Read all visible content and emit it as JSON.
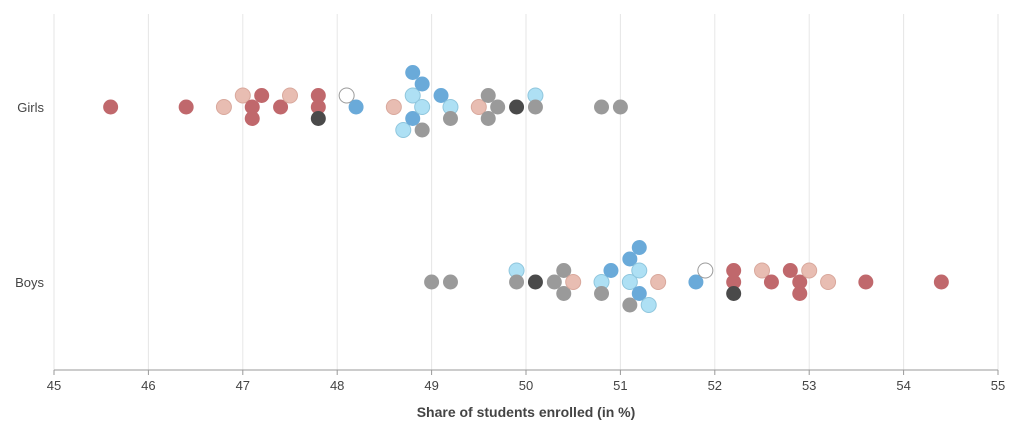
{
  "chart_data": {
    "type": "scatter",
    "title": "",
    "xlabel": "Share of students enrolled (in %)",
    "ylabel": "",
    "xlim": [
      45,
      55
    ],
    "x_ticks": [
      "45",
      "46",
      "47",
      "48",
      "49",
      "50",
      "51",
      "52",
      "53",
      "54",
      "55"
    ],
    "categories": [
      "Girls",
      "Boys"
    ],
    "grid": "vertical",
    "legend": "none",
    "colors": {
      "dark_red": "#c0686c",
      "light_pink": "#e8bdb2",
      "dark_blue": "#6aaad9",
      "light_blue": "#aee0f4",
      "gray": "#9a9a9a",
      "dark_gray": "#4a4a4a",
      "white": "#ffffff"
    },
    "series": [
      {
        "category": "Girls",
        "points": [
          {
            "x": 45.6,
            "color": "dark_red",
            "row": 0
          },
          {
            "x": 46.4,
            "color": "dark_red",
            "row": 0
          },
          {
            "x": 46.8,
            "color": "light_pink",
            "row": 0
          },
          {
            "x": 47.0,
            "color": "light_pink",
            "row": 1
          },
          {
            "x": 47.1,
            "color": "dark_red",
            "row": 0
          },
          {
            "x": 47.1,
            "color": "dark_red",
            "row": -1
          },
          {
            "x": 47.2,
            "color": "dark_red",
            "row": 1
          },
          {
            "x": 47.4,
            "color": "dark_red",
            "row": 0
          },
          {
            "x": 47.5,
            "color": "light_pink",
            "row": 1
          },
          {
            "x": 47.8,
            "color": "dark_red",
            "row": 1
          },
          {
            "x": 47.8,
            "color": "dark_red",
            "row": 0
          },
          {
            "x": 47.8,
            "color": "dark_gray",
            "row": -1
          },
          {
            "x": 48.1,
            "color": "white",
            "row": 1
          },
          {
            "x": 48.2,
            "color": "dark_blue",
            "row": 0
          },
          {
            "x": 48.6,
            "color": "light_pink",
            "row": 0
          },
          {
            "x": 48.7,
            "color": "light_blue",
            "row": -2
          },
          {
            "x": 48.8,
            "color": "dark_blue",
            "row": 3
          },
          {
            "x": 48.8,
            "color": "light_blue",
            "row": 1
          },
          {
            "x": 48.8,
            "color": "dark_blue",
            "row": -1
          },
          {
            "x": 48.9,
            "color": "dark_blue",
            "row": 2
          },
          {
            "x": 48.9,
            "color": "light_blue",
            "row": 0
          },
          {
            "x": 48.9,
            "color": "gray",
            "row": -2
          },
          {
            "x": 49.1,
            "color": "dark_blue",
            "row": 1
          },
          {
            "x": 49.2,
            "color": "light_blue",
            "row": 0
          },
          {
            "x": 49.2,
            "color": "gray",
            "row": -1
          },
          {
            "x": 49.5,
            "color": "light_pink",
            "row": 0
          },
          {
            "x": 49.6,
            "color": "gray",
            "row": 1
          },
          {
            "x": 49.6,
            "color": "gray",
            "row": -1
          },
          {
            "x": 49.7,
            "color": "gray",
            "row": 0
          },
          {
            "x": 49.9,
            "color": "dark_gray",
            "row": 0
          },
          {
            "x": 50.1,
            "color": "light_blue",
            "row": 1
          },
          {
            "x": 50.1,
            "color": "gray",
            "row": 0
          },
          {
            "x": 50.8,
            "color": "gray",
            "row": 0
          },
          {
            "x": 51.0,
            "color": "gray",
            "row": 0
          }
        ]
      },
      {
        "category": "Boys",
        "points": [
          {
            "x": 49.0,
            "color": "gray",
            "row": 0
          },
          {
            "x": 49.2,
            "color": "gray",
            "row": 0
          },
          {
            "x": 49.9,
            "color": "light_blue",
            "row": 1
          },
          {
            "x": 49.9,
            "color": "gray",
            "row": 0
          },
          {
            "x": 50.1,
            "color": "dark_gray",
            "row": 0
          },
          {
            "x": 50.3,
            "color": "gray",
            "row": 0
          },
          {
            "x": 50.4,
            "color": "gray",
            "row": 1
          },
          {
            "x": 50.4,
            "color": "gray",
            "row": -1
          },
          {
            "x": 50.5,
            "color": "light_pink",
            "row": 0
          },
          {
            "x": 50.8,
            "color": "light_blue",
            "row": 0
          },
          {
            "x": 50.8,
            "color": "gray",
            "row": -1
          },
          {
            "x": 50.9,
            "color": "dark_blue",
            "row": 1
          },
          {
            "x": 51.1,
            "color": "dark_blue",
            "row": 2
          },
          {
            "x": 51.1,
            "color": "light_blue",
            "row": 0
          },
          {
            "x": 51.1,
            "color": "gray",
            "row": -2
          },
          {
            "x": 51.2,
            "color": "dark_blue",
            "row": 3
          },
          {
            "x": 51.2,
            "color": "light_blue",
            "row": 1
          },
          {
            "x": 51.2,
            "color": "dark_blue",
            "row": -1
          },
          {
            "x": 51.3,
            "color": "light_blue",
            "row": -2
          },
          {
            "x": 51.4,
            "color": "light_pink",
            "row": 0
          },
          {
            "x": 51.8,
            "color": "dark_blue",
            "row": 0
          },
          {
            "x": 51.9,
            "color": "white",
            "row": 1
          },
          {
            "x": 52.2,
            "color": "dark_red",
            "row": 1
          },
          {
            "x": 52.2,
            "color": "dark_red",
            "row": 0
          },
          {
            "x": 52.2,
            "color": "dark_gray",
            "row": -1
          },
          {
            "x": 52.5,
            "color": "light_pink",
            "row": 1
          },
          {
            "x": 52.6,
            "color": "dark_red",
            "row": 0
          },
          {
            "x": 52.8,
            "color": "dark_red",
            "row": 1
          },
          {
            "x": 52.9,
            "color": "dark_red",
            "row": 0
          },
          {
            "x": 52.9,
            "color": "dark_red",
            "row": -1
          },
          {
            "x": 53.0,
            "color": "light_pink",
            "row": 1
          },
          {
            "x": 53.2,
            "color": "light_pink",
            "row": 0
          },
          {
            "x": 53.6,
            "color": "dark_red",
            "row": 0
          },
          {
            "x": 54.4,
            "color": "dark_red",
            "row": 0
          }
        ]
      }
    ]
  }
}
